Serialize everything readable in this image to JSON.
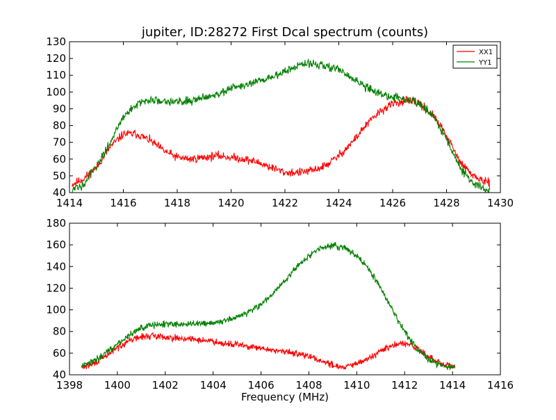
{
  "chart_data": [
    {
      "type": "line",
      "title": "jupiter, ID:28272 First Dcal spectrum (counts)",
      "xlabel": "",
      "ylabel": "",
      "xlim": [
        1414,
        1430
      ],
      "ylim": [
        40,
        130
      ],
      "xticks": [
        1414,
        1416,
        1418,
        1420,
        1422,
        1424,
        1426,
        1428,
        1430
      ],
      "yticks": [
        40,
        50,
        60,
        70,
        80,
        90,
        100,
        110,
        120,
        130
      ],
      "grid": false,
      "legend": "top-right",
      "noise": 2.2,
      "series": [
        {
          "name": "XX1",
          "color": "#ff0000",
          "x": [
            1414.1,
            1414.5,
            1415.0,
            1415.5,
            1416.0,
            1416.5,
            1417.0,
            1417.5,
            1418.0,
            1418.5,
            1419.0,
            1419.5,
            1420.0,
            1420.5,
            1421.0,
            1421.5,
            1422.0,
            1422.5,
            1423.0,
            1423.5,
            1424.0,
            1424.5,
            1425.0,
            1425.5,
            1426.0,
            1426.5,
            1427.0,
            1427.5,
            1428.0,
            1428.5,
            1429.0,
            1429.6
          ],
          "y": [
            45,
            48,
            55,
            67,
            75,
            75,
            71,
            65,
            61,
            60,
            61,
            62,
            61,
            60,
            58,
            55,
            52,
            52,
            53,
            56,
            62,
            70,
            80,
            88,
            93,
            95,
            93,
            86,
            74,
            58,
            50,
            45
          ]
        },
        {
          "name": "YY1",
          "color": "#008000",
          "x": [
            1414.1,
            1414.5,
            1415.0,
            1415.5,
            1416.0,
            1416.5,
            1417.0,
            1417.5,
            1418.0,
            1418.5,
            1419.0,
            1419.5,
            1420.0,
            1420.5,
            1421.0,
            1421.5,
            1422.0,
            1422.5,
            1423.0,
            1423.5,
            1424.0,
            1424.5,
            1425.0,
            1425.5,
            1426.0,
            1426.5,
            1427.0,
            1427.5,
            1428.0,
            1428.5,
            1429.0,
            1429.6
          ],
          "y": [
            41,
            45,
            55,
            70,
            85,
            93,
            95,
            95,
            94,
            95,
            97,
            99,
            102,
            104,
            106,
            109,
            112,
            116,
            117,
            116,
            113,
            108,
            103,
            99,
            97,
            96,
            93,
            86,
            72,
            55,
            45,
            41
          ]
        }
      ]
    },
    {
      "type": "line",
      "title": "",
      "xlabel": "Frequency (MHz)",
      "ylabel": "",
      "xlim": [
        1398,
        1416
      ],
      "ylim": [
        40,
        180
      ],
      "xticks": [
        1398,
        1400,
        1402,
        1404,
        1406,
        1408,
        1410,
        1412,
        1414,
        1416
      ],
      "yticks": [
        40,
        60,
        80,
        100,
        120,
        140,
        160,
        180
      ],
      "grid": false,
      "noise": 2.6,
      "series": [
        {
          "color": "#ff0000",
          "x": [
            1398.5,
            1399.0,
            1399.5,
            1400.0,
            1400.5,
            1401.0,
            1401.5,
            1402.0,
            1402.5,
            1403.0,
            1403.5,
            1404.0,
            1404.5,
            1405.0,
            1405.5,
            1406.0,
            1406.5,
            1407.0,
            1407.5,
            1408.0,
            1408.5,
            1409.0,
            1409.5,
            1410.0,
            1410.5,
            1411.0,
            1411.5,
            1412.0,
            1412.5,
            1413.0,
            1413.5,
            1414.1
          ],
          "y": [
            47,
            50,
            57,
            65,
            72,
            75,
            76,
            75,
            74,
            73,
            72,
            71,
            69,
            68,
            66,
            64,
            63,
            61,
            60,
            57,
            53,
            49,
            47,
            50,
            55,
            62,
            67,
            69,
            65,
            57,
            50,
            47
          ]
        },
        {
          "color": "#008000",
          "x": [
            1398.5,
            1399.0,
            1399.5,
            1400.0,
            1400.5,
            1401.0,
            1401.5,
            1402.0,
            1402.5,
            1403.0,
            1403.5,
            1404.0,
            1404.5,
            1405.0,
            1405.5,
            1406.0,
            1406.5,
            1407.0,
            1407.5,
            1408.0,
            1408.5,
            1409.0,
            1409.5,
            1410.0,
            1410.5,
            1411.0,
            1411.5,
            1412.0,
            1412.5,
            1413.0,
            1413.5,
            1414.1
          ],
          "y": [
            48,
            53,
            60,
            68,
            77,
            83,
            86,
            87,
            87,
            87,
            87,
            88,
            90,
            93,
            98,
            105,
            115,
            127,
            140,
            150,
            157,
            160,
            157,
            150,
            138,
            120,
            100,
            80,
            64,
            54,
            49,
            47
          ]
        }
      ]
    }
  ]
}
